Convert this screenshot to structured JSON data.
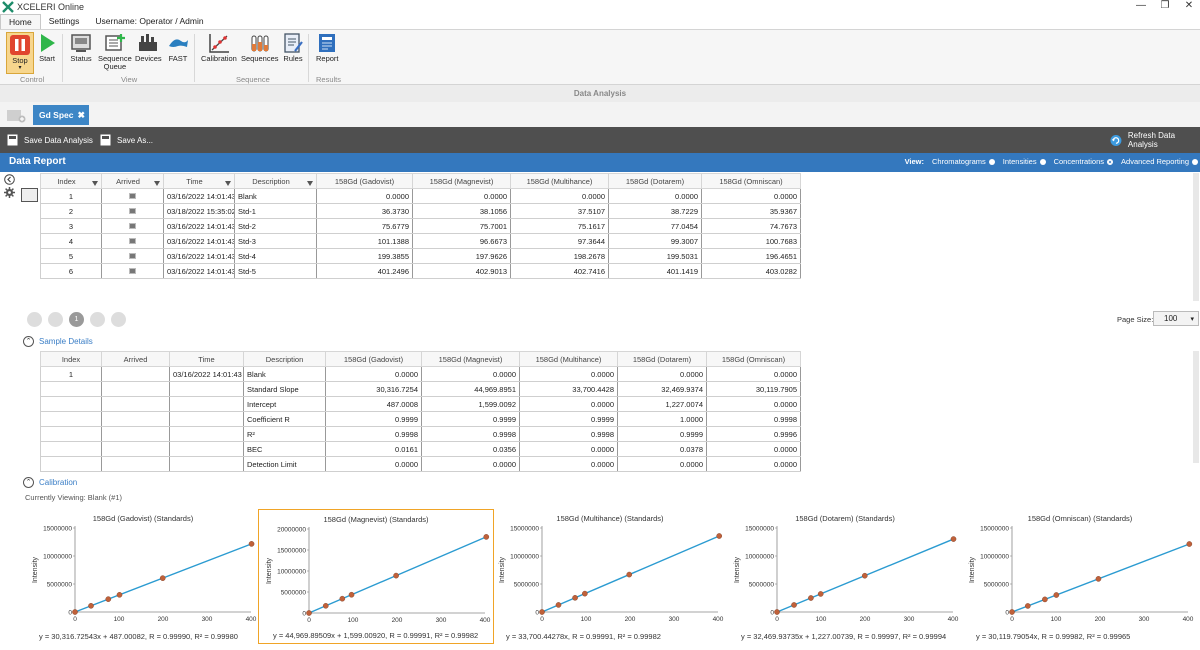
{
  "app": {
    "title": "XCELERI Online",
    "window_controls": [
      "—",
      "❐",
      "✕"
    ]
  },
  "menu": {
    "tabs": [
      "Home",
      "Settings",
      "Username: Operator / Admin"
    ]
  },
  "ribbon": {
    "buttons": {
      "stop": "Stop",
      "start": "Start",
      "status": "Status",
      "queue_1": "Sequence",
      "queue_2": "Queue",
      "devices": "Devices",
      "fast": "FAST",
      "calibration": "Calibration",
      "sequences": "Sequences",
      "rules": "Rules",
      "report": "Report"
    },
    "groups": {
      "control": "Control",
      "view": "View",
      "sequence": "Sequence",
      "results": "Results"
    }
  },
  "section_bar": "Data Analysis",
  "doc_tab": {
    "label": "Gd Spec",
    "close": "✖"
  },
  "toolbar": {
    "save": "Save Data Analysis",
    "save_as": "Save As...",
    "refresh": "Refresh Data Analysis"
  },
  "report": {
    "title": "Data Report",
    "view_label": "View:",
    "view_options": [
      "Chromatograms",
      "Intensities",
      "Concentrations",
      "Advanced Reporting"
    ],
    "selected_view": "Concentrations"
  },
  "table1": {
    "headers": [
      "Index",
      "Arrived",
      "Time",
      "Description",
      "158Gd (Gadovist)",
      "158Gd (Magnevist)",
      "158Gd (Multihance)",
      "158Gd (Dotarem)",
      "158Gd (Omniscan)"
    ],
    "rows": [
      [
        "1",
        "03/16/2022 14:01:43",
        "Blank",
        "0.0000",
        "0.0000",
        "0.0000",
        "0.0000",
        "0.0000"
      ],
      [
        "2",
        "03/18/2022 15:35:02",
        "Std-1",
        "36.3730",
        "38.1056",
        "37.5107",
        "38.7229",
        "35.9367"
      ],
      [
        "3",
        "03/16/2022 14:01:43",
        "Std-2",
        "75.6779",
        "75.7001",
        "75.1617",
        "77.0454",
        "74.7673"
      ],
      [
        "4",
        "03/16/2022 14:01:43",
        "Std-3",
        "101.1388",
        "96.6673",
        "97.3644",
        "99.3007",
        "100.7683"
      ],
      [
        "5",
        "03/16/2022 14:01:43",
        "Std-4",
        "199.3855",
        "197.9626",
        "198.2678",
        "199.5031",
        "196.4651"
      ],
      [
        "6",
        "03/16/2022 14:01:43",
        "Std-5",
        "401.2496",
        "402.9013",
        "402.7416",
        "401.1419",
        "403.0282"
      ]
    ]
  },
  "pager": {
    "current": "1",
    "size_label": "Page Size:",
    "size_value": "100"
  },
  "sample_details": {
    "title": "Sample Details",
    "headers": [
      "Index",
      "Arrived",
      "Time",
      "Description",
      "158Gd (Gadovist)",
      "158Gd (Magnevist)",
      "158Gd (Multihance)",
      "158Gd (Dotarem)",
      "158Gd (Omniscan)"
    ],
    "rows": [
      [
        "1",
        "",
        "03/16/2022 14:01:43",
        "Blank",
        "0.0000",
        "0.0000",
        "0.0000",
        "0.0000",
        "0.0000"
      ],
      [
        "",
        "",
        "",
        "Standard Slope",
        "30,316.7254",
        "44,969.8951",
        "33,700.4428",
        "32,469.9374",
        "30,119.7905"
      ],
      [
        "",
        "",
        "",
        "Intercept",
        "487.0008",
        "1,599.0092",
        "0.0000",
        "1,227.0074",
        "0.0000"
      ],
      [
        "",
        "",
        "",
        "Coefficient R",
        "0.9999",
        "0.9999",
        "0.9999",
        "1.0000",
        "0.9998"
      ],
      [
        "",
        "",
        "",
        "R²",
        "0.9998",
        "0.9998",
        "0.9998",
        "0.9999",
        "0.9996"
      ],
      [
        "",
        "",
        "",
        "BEC",
        "0.0161",
        "0.0356",
        "0.0000",
        "0.0378",
        "0.0000"
      ],
      [
        "",
        "",
        "",
        "Detection Limit",
        "0.0000",
        "0.0000",
        "0.0000",
        "0.0000",
        "0.0000"
      ]
    ]
  },
  "calibration": {
    "title": "Calibration",
    "viewing": "Currently Viewing: Blank (#1)"
  },
  "chart_data": [
    {
      "type": "scatter",
      "title": "158Gd (Gadovist) (Standards)",
      "ylabel": "Intensity",
      "xlim": [
        0,
        400
      ],
      "ylim": [
        0,
        15000000
      ],
      "yticks": [
        "0",
        "5000000",
        "10000000",
        "15000000"
      ],
      "xticks": [
        "0",
        "100",
        "200",
        "300",
        "400"
      ],
      "x": [
        0,
        36.373,
        75.678,
        101.139,
        199.386,
        401.25
      ],
      "y": [
        487,
        1103226,
        2294783,
        3066751,
        6045278,
        12165240
      ],
      "line_color": "#2b9bd1",
      "point_color": "#c0613a",
      "equation": "y = 30,316.72543x + 487.00082, R = 0.99990, R² = 0.99980"
    },
    {
      "type": "scatter",
      "title": "158Gd (Magnevist) (Standards)",
      "ylabel": "Intensity",
      "xlim": [
        0,
        400
      ],
      "ylim": [
        0,
        20000000
      ],
      "yticks": [
        "0",
        "5000000",
        "10000000",
        "15000000",
        "20000000"
      ],
      "xticks": [
        "0",
        "100",
        "200",
        "300",
        "400"
      ],
      "x": [
        0,
        38.106,
        75.7,
        96.667,
        197.963,
        402.901
      ],
      "y": [
        1599,
        1715208,
        3405793,
        4348670,
        8903735,
        18120590
      ],
      "line_color": "#2b9bd1",
      "point_color": "#c0613a",
      "equation": "y = 44,969.89509x + 1,599.00920, R = 0.99991, R² = 0.99982"
    },
    {
      "type": "scatter",
      "title": "158Gd (Multihance) (Standards)",
      "ylabel": "Intensity",
      "xlim": [
        0,
        400
      ],
      "ylim": [
        0,
        15000000
      ],
      "yticks": [
        "0",
        "5000000",
        "10000000",
        "15000000"
      ],
      "xticks": [
        "0",
        "100",
        "200",
        "300",
        "400"
      ],
      "x": [
        0,
        37.511,
        75.162,
        97.364,
        198.268,
        402.742
      ],
      "y": [
        0,
        1264134,
        2532949,
        3281218,
        6681694,
        13572590
      ],
      "line_color": "#2b9bd1",
      "point_color": "#c0613a",
      "equation": "y = 33,700.44278x, R = 0.99991, R² = 0.99982"
    },
    {
      "type": "scatter",
      "title": "158Gd (Dotarem) (Standards)",
      "ylabel": "Intensity",
      "xlim": [
        0,
        400
      ],
      "ylim": [
        0,
        15000000
      ],
      "yticks": [
        "0",
        "5000000",
        "10000000",
        "15000000"
      ],
      "xticks": [
        "0",
        "100",
        "200",
        "300",
        "400"
      ],
      "x": [
        0,
        38.723,
        77.045,
        99.301,
        199.503,
        401.142
      ],
      "y": [
        1227,
        1258530,
        2502845,
        3225491,
        6478852,
        13026050
      ],
      "line_color": "#2b9bd1",
      "point_color": "#c0613a",
      "equation": "y = 32,469.93735x + 1,227.00739, R = 0.99997, R² = 0.99994"
    },
    {
      "type": "scatter",
      "title": "158Gd (Omniscan) (Standards)",
      "ylabel": "Intensity",
      "xlim": [
        0,
        400
      ],
      "ylim": [
        0,
        15000000
      ],
      "yticks": [
        "0",
        "5000000",
        "10000000",
        "15000000"
      ],
      "xticks": [
        "0",
        "100",
        "200",
        "300",
        "400"
      ],
      "x": [
        0,
        35.937,
        74.767,
        100.768,
        196.465,
        403.028
      ],
      "y": [
        0,
        1082389,
        2251918,
        3035119,
        5917467,
        12139110
      ],
      "line_color": "#2b9bd1",
      "point_color": "#c0613a",
      "equation": "y = 30,119.79054x, R = 0.99982, R² = 0.99965"
    }
  ]
}
